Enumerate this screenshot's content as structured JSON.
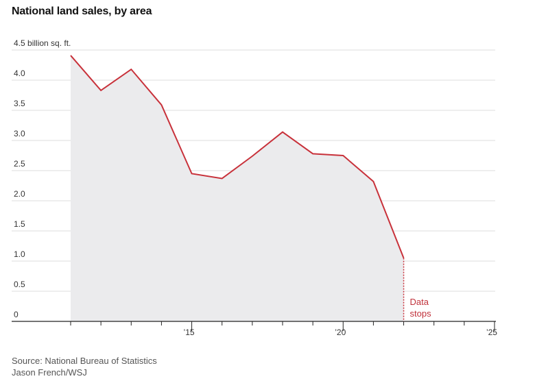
{
  "chart_data": {
    "type": "area",
    "title": "National land sales, by area",
    "y_unit_label": "4.5 billion sq. ft.",
    "ylim": [
      0,
      4.5
    ],
    "y_ticks": [
      0,
      0.5,
      1.0,
      1.5,
      2.0,
      2.5,
      3.0,
      3.5,
      4.0,
      4.5
    ],
    "y_tick_labels": [
      "0",
      "0.5",
      "1.0",
      "1.5",
      "2.0",
      "2.5",
      "3.0",
      "3.5",
      "4.0",
      "4.5 billion sq. ft."
    ],
    "xlim": [
      2011,
      2025
    ],
    "x_ticks": [
      2011,
      2012,
      2013,
      2014,
      2015,
      2016,
      2017,
      2018,
      2019,
      2020,
      2021,
      2022,
      2023,
      2024,
      2025
    ],
    "x_tick_labels": [
      {
        "x": 2015,
        "label": "’15"
      },
      {
        "x": 2020,
        "label": "’20"
      },
      {
        "x": 2025,
        "label": "’25"
      }
    ],
    "series": [
      {
        "x": [
          2011,
          2012,
          2013,
          2014,
          2015,
          2016,
          2017,
          2018,
          2019,
          2020,
          2021,
          2022
        ],
        "values": [
          4.41,
          3.83,
          4.18,
          3.59,
          2.45,
          2.37,
          2.74,
          3.14,
          2.78,
          2.75,
          2.32,
          1.05
        ]
      }
    ],
    "annotation": {
      "x": 2022,
      "lines": [
        "Data",
        "stops"
      ]
    },
    "colors": {
      "line": "#c8313a",
      "area": "#ebebed",
      "grid": "#dddddd",
      "axis": "#222222"
    },
    "grid": true
  },
  "footer": {
    "source": "Source: National Bureau of Statistics",
    "credit": "Jason French/WSJ"
  }
}
